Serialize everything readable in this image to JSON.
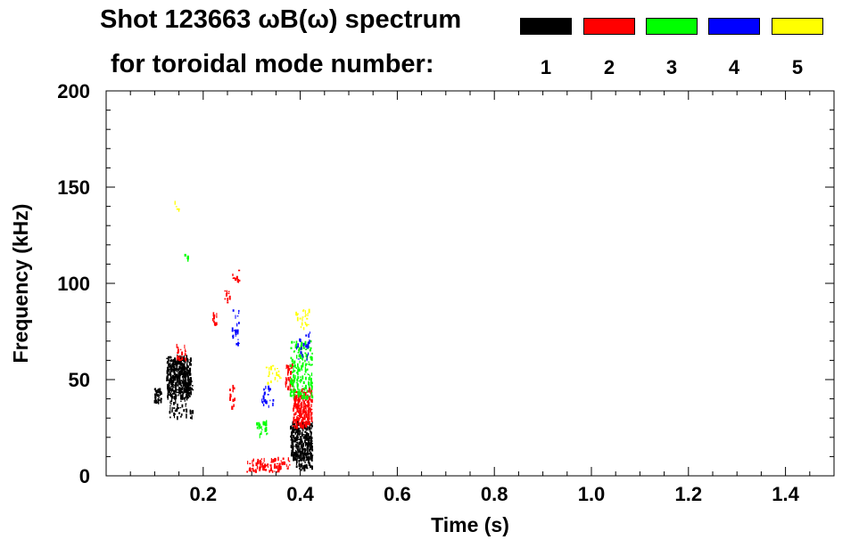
{
  "title": {
    "line1": "Shot 123663 ωB(ω) spectrum",
    "line2": "for toroidal mode number:"
  },
  "legend": [
    {
      "label": "1",
      "color": "#000000"
    },
    {
      "label": "2",
      "color": "#ff0000"
    },
    {
      "label": "3",
      "color": "#00ff00"
    },
    {
      "label": "4",
      "color": "#0000ff"
    },
    {
      "label": "5",
      "color": "#ffff00"
    }
  ],
  "chart_data": {
    "type": "scatter",
    "title": "Shot 123663 ωB(ω) spectrum",
    "xlabel": "Time (s)",
    "ylabel": "Frequency (kHz)",
    "xlim": [
      0.0,
      1.5
    ],
    "ylim": [
      0,
      200
    ],
    "xticks": [
      0.2,
      0.4,
      0.6,
      0.8,
      1.0,
      1.2,
      1.4
    ],
    "xtick_labels": [
      "0.2",
      "0.4",
      "0.6",
      "0.8",
      "1.0",
      "1.2",
      "1.4"
    ],
    "yticks": [
      0,
      50,
      100,
      150,
      200
    ],
    "ytick_labels": [
      "0",
      "50",
      "100",
      "150",
      "200"
    ],
    "grid": false,
    "legend_position": "top",
    "series": [
      {
        "name": "1",
        "color": "#000000",
        "clusters": [
          {
            "t": [
              0.1,
              0.115
            ],
            "f": [
              38,
              45
            ],
            "n": 40
          },
          {
            "t": [
              0.125,
              0.175
            ],
            "f": [
              40,
              62
            ],
            "n": 420
          },
          {
            "t": [
              0.13,
              0.18
            ],
            "f": [
              30,
              50
            ],
            "n": 90
          },
          {
            "t": [
              0.38,
              0.425
            ],
            "f": [
              8,
              28
            ],
            "n": 320
          },
          {
            "t": [
              0.39,
              0.425
            ],
            "f": [
              3,
              12
            ],
            "n": 60
          }
        ]
      },
      {
        "name": "2",
        "color": "#ff0000",
        "clusters": [
          {
            "t": [
              0.145,
              0.165
            ],
            "f": [
              60,
              68
            ],
            "n": 25
          },
          {
            "t": [
              0.22,
              0.23
            ],
            "f": [
              78,
              84
            ],
            "n": 12
          },
          {
            "t": [
              0.245,
              0.26
            ],
            "f": [
              90,
              98
            ],
            "n": 10
          },
          {
            "t": [
              0.26,
              0.275
            ],
            "f": [
              100,
              108
            ],
            "n": 10
          },
          {
            "t": [
              0.255,
              0.265
            ],
            "f": [
              35,
              47
            ],
            "n": 14
          },
          {
            "t": [
              0.29,
              0.38
            ],
            "f": [
              2,
              9
            ],
            "n": 90
          },
          {
            "t": [
              0.37,
              0.385
            ],
            "f": [
              45,
              58
            ],
            "n": 40
          },
          {
            "t": [
              0.385,
              0.425
            ],
            "f": [
              25,
              45
            ],
            "n": 230
          }
        ]
      },
      {
        "name": "3",
        "color": "#00ff00",
        "clusters": [
          {
            "t": [
              0.16,
              0.17
            ],
            "f": [
              112,
              116
            ],
            "n": 6
          },
          {
            "t": [
              0.31,
              0.335
            ],
            "f": [
              20,
              28
            ],
            "n": 28
          },
          {
            "t": [
              0.38,
              0.425
            ],
            "f": [
              40,
              70
            ],
            "n": 180
          }
        ]
      },
      {
        "name": "4",
        "color": "#0000ff",
        "clusters": [
          {
            "t": [
              0.26,
              0.275
            ],
            "f": [
              68,
              86
            ],
            "n": 22
          },
          {
            "t": [
              0.32,
              0.345
            ],
            "f": [
              36,
              46
            ],
            "n": 22
          },
          {
            "t": [
              0.39,
              0.42
            ],
            "f": [
              60,
              76
            ],
            "n": 24
          }
        ]
      },
      {
        "name": "5",
        "color": "#ffff00",
        "clusters": [
          {
            "t": [
              0.14,
              0.15
            ],
            "f": [
              138,
              142
            ],
            "n": 5
          },
          {
            "t": [
              0.33,
              0.36
            ],
            "f": [
              48,
              58
            ],
            "n": 20
          },
          {
            "t": [
              0.39,
              0.42
            ],
            "f": [
              75,
              86
            ],
            "n": 22
          }
        ]
      }
    ]
  }
}
